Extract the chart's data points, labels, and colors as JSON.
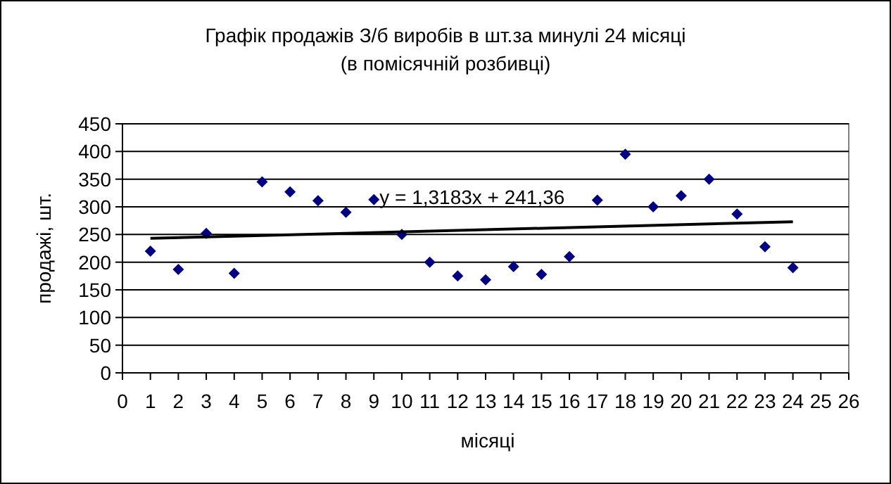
{
  "chart_data": {
    "type": "scatter",
    "title": "Графік продажів З/б виробів в шт.за минулі 24 місяці",
    "subtitle": "(в помісячній розбивці)",
    "xlabel": "місяці",
    "ylabel": "продажі, шт.",
    "xlim": [
      0,
      26
    ],
    "xticks": [
      0,
      1,
      2,
      3,
      4,
      5,
      6,
      7,
      8,
      9,
      10,
      11,
      12,
      13,
      14,
      15,
      16,
      17,
      18,
      19,
      20,
      21,
      22,
      23,
      24,
      25,
      26
    ],
    "ylim": [
      0,
      450
    ],
    "yticks": [
      0,
      50,
      100,
      150,
      200,
      250,
      300,
      350,
      400,
      450
    ],
    "grid": "y",
    "annotations": [
      {
        "text": "y = 1,3183x + 241,36",
        "x": 9,
        "y": 305
      }
    ],
    "series": [
      {
        "marker": "diamond",
        "color": "#000080",
        "x": [
          1,
          2,
          3,
          4,
          5,
          6,
          7,
          8,
          9,
          10,
          11,
          12,
          13,
          14,
          15,
          16,
          17,
          18,
          19,
          20,
          21,
          22,
          23,
          24
        ],
        "values": [
          220,
          187,
          252,
          180,
          345,
          327,
          311,
          290,
          313,
          250,
          200,
          175,
          168,
          192,
          178,
          210,
          312,
          395,
          300,
          320,
          350,
          287,
          228,
          190
        ]
      },
      {
        "type": "line",
        "marker": "none",
        "color": "#000000",
        "x": [
          1,
          24
        ],
        "values": [
          243,
          273
        ]
      }
    ]
  }
}
